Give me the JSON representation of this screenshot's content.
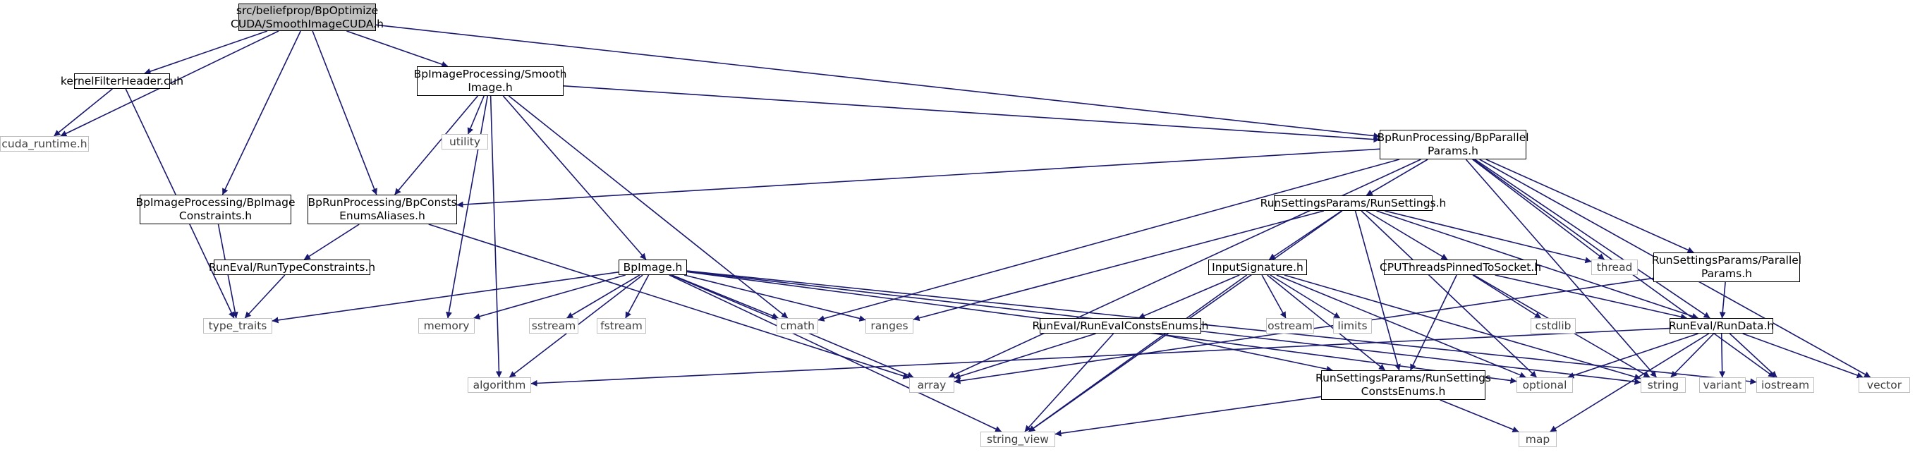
{
  "graph": {
    "title": "src/beliefprop/BpOptimizeCUDA/SmoothImageCUDA.h",
    "nodes": [
      {
        "id": "root",
        "label": "src/beliefprop/BpOptimize\nCUDA/SmoothImageCUDA.h",
        "kind": "root"
      },
      {
        "id": "kernelFilterHeader",
        "label": "kernelFilterHeader.cuh",
        "kind": "local"
      },
      {
        "id": "cudaRuntime",
        "label": "cuda_runtime.h",
        "kind": "system"
      },
      {
        "id": "bpImageConstraints",
        "label": "BpImageProcessing/BpImage\nConstraints.h",
        "kind": "local"
      },
      {
        "id": "smoothImage",
        "label": "BpImageProcessing/Smooth\nImage.h",
        "kind": "local"
      },
      {
        "id": "bpConsts",
        "label": "BpRunProcessing/BpConsts\nEnumsAliases.h",
        "kind": "local"
      },
      {
        "id": "utility",
        "label": "utility",
        "kind": "system"
      },
      {
        "id": "bpParallel",
        "label": "BpRunProcessing/BpParallel\nParams.h",
        "kind": "local"
      },
      {
        "id": "runTypeConstraints",
        "label": "RunEval/RunTypeConstraints.h",
        "kind": "local"
      },
      {
        "id": "typeTraits",
        "label": "type_traits",
        "kind": "system"
      },
      {
        "id": "bpImage",
        "label": "BpImage.h",
        "kind": "local"
      },
      {
        "id": "memory",
        "label": "memory",
        "kind": "system"
      },
      {
        "id": "sstream",
        "label": "sstream",
        "kind": "system"
      },
      {
        "id": "fstream",
        "label": "fstream",
        "kind": "system"
      },
      {
        "id": "cmath",
        "label": "cmath",
        "kind": "system"
      },
      {
        "id": "ranges",
        "label": "ranges",
        "kind": "system"
      },
      {
        "id": "algorithm",
        "label": "algorithm",
        "kind": "system"
      },
      {
        "id": "array",
        "label": "array",
        "kind": "system"
      },
      {
        "id": "stringView",
        "label": "string_view",
        "kind": "system"
      },
      {
        "id": "runSettings",
        "label": "RunSettingsParams/RunSettings.h",
        "kind": "local"
      },
      {
        "id": "inputSignature",
        "label": "InputSignature.h",
        "kind": "local"
      },
      {
        "id": "cpuThreads",
        "label": "CPUThreadsPinnedToSocket.h",
        "kind": "local"
      },
      {
        "id": "thread",
        "label": "thread",
        "kind": "system"
      },
      {
        "id": "parallelParams",
        "label": "RunSettingsParams/Parallel\nParams.h",
        "kind": "local"
      },
      {
        "id": "runEvalConsts",
        "label": "RunEval/RunEvalConstsEnums.h",
        "kind": "local"
      },
      {
        "id": "ostream",
        "label": "ostream",
        "kind": "system"
      },
      {
        "id": "limits",
        "label": "limits",
        "kind": "system"
      },
      {
        "id": "cstdlib",
        "label": "cstdlib",
        "kind": "system"
      },
      {
        "id": "runData",
        "label": "RunEval/RunData.h",
        "kind": "local"
      },
      {
        "id": "runSettingsConsts",
        "label": "RunSettingsParams/RunSettings\nConstsEnums.h",
        "kind": "local"
      },
      {
        "id": "optional",
        "label": "optional",
        "kind": "system"
      },
      {
        "id": "string",
        "label": "string",
        "kind": "system"
      },
      {
        "id": "variant",
        "label": "variant",
        "kind": "system"
      },
      {
        "id": "iostream",
        "label": "iostream",
        "kind": "system"
      },
      {
        "id": "vector",
        "label": "vector",
        "kind": "system"
      },
      {
        "id": "map",
        "label": "map",
        "kind": "system"
      }
    ],
    "edges": [
      [
        "root",
        "cudaRuntime"
      ],
      [
        "root",
        "kernelFilterHeader"
      ],
      [
        "root",
        "bpImageConstraints"
      ],
      [
        "root",
        "bpConsts"
      ],
      [
        "root",
        "smoothImage"
      ],
      [
        "root",
        "bpParallel"
      ],
      [
        "kernelFilterHeader",
        "cudaRuntime"
      ],
      [
        "kernelFilterHeader",
        "typeTraits"
      ],
      [
        "bpImageConstraints",
        "typeTraits"
      ],
      [
        "smoothImage",
        "bpConsts"
      ],
      [
        "smoothImage",
        "utility"
      ],
      [
        "smoothImage",
        "memory"
      ],
      [
        "smoothImage",
        "algorithm"
      ],
      [
        "smoothImage",
        "bpImage"
      ],
      [
        "smoothImage",
        "cmath"
      ],
      [
        "smoothImage",
        "bpParallel"
      ],
      [
        "bpConsts",
        "runTypeConstraints"
      ],
      [
        "bpConsts",
        "array"
      ],
      [
        "runTypeConstraints",
        "typeTraits"
      ],
      [
        "bpParallel",
        "bpConsts"
      ],
      [
        "bpParallel",
        "cmath"
      ],
      [
        "bpParallel",
        "array"
      ],
      [
        "bpParallel",
        "runSettings"
      ],
      [
        "bpParallel",
        "thread"
      ],
      [
        "bpParallel",
        "parallelParams"
      ],
      [
        "bpParallel",
        "runData"
      ],
      [
        "bpParallel",
        "string"
      ],
      [
        "bpParallel",
        "iostream"
      ],
      [
        "bpParallel",
        "vector"
      ],
      [
        "bpImage",
        "typeTraits"
      ],
      [
        "bpImage",
        "memory"
      ],
      [
        "bpImage",
        "sstream"
      ],
      [
        "bpImage",
        "fstream"
      ],
      [
        "bpImage",
        "cmath"
      ],
      [
        "bpImage",
        "ranges"
      ],
      [
        "bpImage",
        "algorithm"
      ],
      [
        "bpImage",
        "array"
      ],
      [
        "bpImage",
        "stringView"
      ],
      [
        "bpImage",
        "optional"
      ],
      [
        "bpImage",
        "string"
      ],
      [
        "bpImage",
        "iostream"
      ],
      [
        "runSettings",
        "ranges"
      ],
      [
        "runSettings",
        "stringView"
      ],
      [
        "runSettings",
        "inputSignature"
      ],
      [
        "runSettings",
        "cpuThreads"
      ],
      [
        "runSettings",
        "thread"
      ],
      [
        "runSettings",
        "runSettingsConsts"
      ],
      [
        "runSettings",
        "optional"
      ],
      [
        "runSettings",
        "runData"
      ],
      [
        "inputSignature",
        "stringView"
      ],
      [
        "inputSignature",
        "runEvalConsts"
      ],
      [
        "inputSignature",
        "ostream"
      ],
      [
        "inputSignature",
        "limits"
      ],
      [
        "inputSignature",
        "runSettingsConsts"
      ],
      [
        "inputSignature",
        "optional"
      ],
      [
        "inputSignature",
        "string"
      ],
      [
        "cpuThreads",
        "cstdlib"
      ],
      [
        "cpuThreads",
        "runSettingsConsts"
      ],
      [
        "cpuThreads",
        "string"
      ],
      [
        "cpuThreads",
        "runData"
      ],
      [
        "parallelParams",
        "array"
      ],
      [
        "parallelParams",
        "runData"
      ],
      [
        "runEvalConsts",
        "array"
      ],
      [
        "runEvalConsts",
        "stringView"
      ],
      [
        "runEvalConsts",
        "runSettingsConsts"
      ],
      [
        "runData",
        "algorithm"
      ],
      [
        "runData",
        "optional"
      ],
      [
        "runData",
        "string"
      ],
      [
        "runData",
        "variant"
      ],
      [
        "runData",
        "iostream"
      ],
      [
        "runData",
        "vector"
      ],
      [
        "runData",
        "map"
      ],
      [
        "runSettingsConsts",
        "stringView"
      ],
      [
        "runSettingsConsts",
        "map"
      ]
    ],
    "colors": {
      "edge": "#191970",
      "node_border": "#000000",
      "system_border": "#bfbfbf",
      "system_text": "#3f3f3f",
      "root_fill": "#bfbfbf",
      "background": "#ffffff"
    }
  }
}
